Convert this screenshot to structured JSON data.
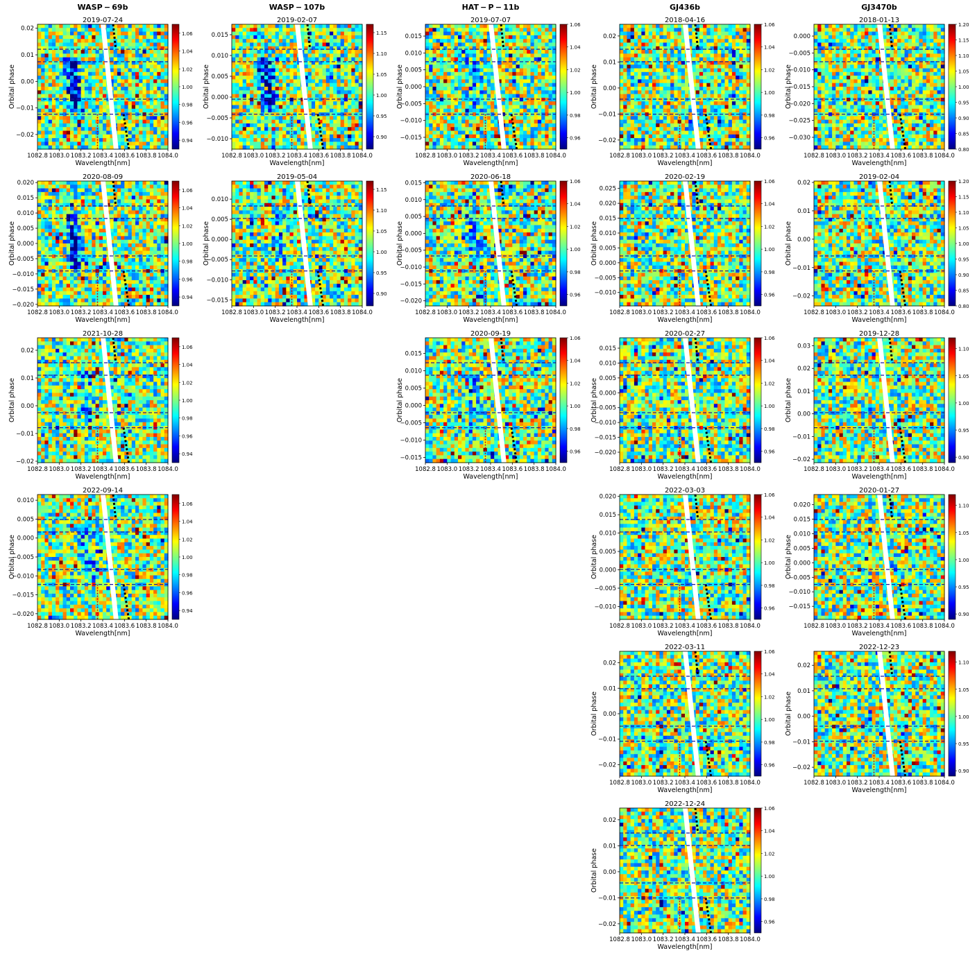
{
  "figure": {
    "column_titles": [
      "WASP − 69b",
      "WASP − 107b",
      "HAT − P − 11b",
      "GJ436b",
      "GJ3470b"
    ],
    "xlabel": "Wavelength[nm]",
    "ylabel": "Orbital phase",
    "x_ticks": [
      "1082.8",
      "1083.0",
      "1083.2",
      "1083.4",
      "1083.6",
      "1083.8",
      "1084.0"
    ],
    "xlim": [
      1082.8,
      1084.0
    ],
    "colormap": "jet",
    "heatmap_pattern": "noise-like transmission residuals"
  },
  "chart_data": [
    {
      "type": "heatmap",
      "column": 0,
      "row": 0,
      "title": "2019-07-24",
      "ylim": [
        -0.0255,
        0.0215
      ],
      "yticks": [
        "0.02",
        "0.01",
        "0.00",
        "−0.01",
        "−0.02"
      ],
      "cbar_range": [
        0.93,
        1.07
      ],
      "cbar_ticks": [
        "1.06",
        "1.04",
        "1.02",
        "1.00",
        "0.98",
        "0.96",
        "0.94"
      ],
      "absorption": "strong"
    },
    {
      "type": "heatmap",
      "column": 0,
      "row": 1,
      "title": "2020-08-09",
      "ylim": [
        -0.0205,
        0.0205
      ],
      "yticks": [
        "0.020",
        "0.015",
        "0.010",
        "0.005",
        "0.000",
        "−0.005",
        "−0.010",
        "−0.015",
        "−0.020"
      ],
      "cbar_range": [
        0.93,
        1.07
      ],
      "cbar_ticks": [
        "1.06",
        "1.04",
        "1.02",
        "1.00",
        "0.98",
        "0.96",
        "0.94"
      ],
      "absorption": "strong"
    },
    {
      "type": "heatmap",
      "column": 0,
      "row": 2,
      "title": "2021-10-28",
      "ylim": [
        -0.0205,
        0.0245
      ],
      "yticks": [
        "0.02",
        "0.01",
        "0.00",
        "−0.01",
        "−0.02"
      ],
      "cbar_range": [
        0.93,
        1.07
      ],
      "cbar_ticks": [
        "1.06",
        "1.04",
        "1.02",
        "1.00",
        "0.98",
        "0.96",
        "0.94"
      ],
      "absorption": "weak"
    },
    {
      "type": "heatmap",
      "column": 0,
      "row": 3,
      "title": "2022-09-14",
      "ylim": [
        -0.0215,
        0.0115
      ],
      "yticks": [
        "0.010",
        "0.005",
        "0.000",
        "−0.005",
        "−0.010",
        "−0.015",
        "−0.020"
      ],
      "cbar_range": [
        0.93,
        1.07
      ],
      "cbar_ticks": [
        "1.06",
        "1.04",
        "1.02",
        "1.00",
        "0.98",
        "0.96",
        "0.94"
      ],
      "absorption": "weak"
    },
    {
      "type": "heatmap",
      "column": 1,
      "row": 0,
      "title": "2019-02-07",
      "ylim": [
        -0.0125,
        0.0175
      ],
      "yticks": [
        "0.015",
        "0.010",
        "0.005",
        "0.000",
        "−0.005",
        "−0.010"
      ],
      "cbar_range": [
        0.87,
        1.17
      ],
      "cbar_ticks": [
        "1.15",
        "1.10",
        "1.05",
        "1.00",
        "0.95",
        "0.90"
      ],
      "absorption": "strong"
    },
    {
      "type": "heatmap",
      "column": 1,
      "row": 1,
      "title": "2019-05-04",
      "ylim": [
        -0.0165,
        0.0145
      ],
      "yticks": [
        "0.010",
        "0.005",
        "0.000",
        "−0.005",
        "−0.010",
        "−0.015"
      ],
      "cbar_range": [
        0.87,
        1.17
      ],
      "cbar_ticks": [
        "1.15",
        "1.10",
        "1.05",
        "1.00",
        "0.95",
        "0.90"
      ],
      "absorption": "weak"
    },
    {
      "type": "heatmap",
      "column": 2,
      "row": 0,
      "title": "2019-07-07",
      "ylim": [
        -0.0185,
        0.0185
      ],
      "yticks": [
        "0.015",
        "0.010",
        "0.005",
        "0.000",
        "−0.005",
        "−0.010",
        "−0.015"
      ],
      "cbar_range": [
        0.95,
        1.06
      ],
      "cbar_ticks": [
        "1.06",
        "1.04",
        "1.02",
        "1.00",
        "0.98",
        "0.96"
      ],
      "absorption": "weak"
    },
    {
      "type": "heatmap",
      "column": 2,
      "row": 1,
      "title": "2020-06-18",
      "ylim": [
        -0.0215,
        0.0155
      ],
      "yticks": [
        "0.015",
        "0.010",
        "0.005",
        "0.000",
        "−0.005",
        "−0.010",
        "−0.015",
        "−0.020"
      ],
      "cbar_range": [
        0.95,
        1.06
      ],
      "cbar_ticks": [
        "1.06",
        "1.04",
        "1.02",
        "1.00",
        "0.98",
        "0.96"
      ],
      "absorption": "weak"
    },
    {
      "type": "heatmap",
      "column": 2,
      "row": 2,
      "title": "2020-09-19",
      "ylim": [
        -0.0165,
        0.0195
      ],
      "yticks": [
        "0.015",
        "0.010",
        "0.005",
        "0.000",
        "−0.005",
        "−0.010",
        "−0.015"
      ],
      "cbar_range": [
        0.95,
        1.06
      ],
      "cbar_ticks": [
        "1.06",
        "1.04",
        "1.02",
        "1.00",
        "0.98",
        "0.96"
      ],
      "absorption": "weak"
    },
    {
      "type": "heatmap",
      "column": 3,
      "row": 0,
      "title": "2018-04-16",
      "ylim": [
        -0.0235,
        0.0245
      ],
      "yticks": [
        "0.02",
        "0.01",
        "0.00",
        "−0.01",
        "−0.02"
      ],
      "cbar_range": [
        0.95,
        1.06
      ],
      "cbar_ticks": [
        "1.06",
        "1.04",
        "1.02",
        "1.00",
        "0.98",
        "0.96"
      ],
      "absorption": "none"
    },
    {
      "type": "heatmap",
      "column": 3,
      "row": 1,
      "title": "2020-02-19",
      "ylim": [
        -0.0145,
        0.0275
      ],
      "yticks": [
        "0.025",
        "0.020",
        "0.015",
        "0.010",
        "0.005",
        "0.000",
        "−0.005",
        "−0.010"
      ],
      "cbar_range": [
        0.95,
        1.06
      ],
      "cbar_ticks": [
        "1.06",
        "1.04",
        "1.02",
        "1.00",
        "0.98",
        "0.96"
      ],
      "absorption": "none"
    },
    {
      "type": "heatmap",
      "column": 3,
      "row": 2,
      "title": "2020-02-27",
      "ylim": [
        -0.0235,
        0.0185
      ],
      "yticks": [
        "0.015",
        "0.010",
        "0.005",
        "0.000",
        "−0.005",
        "−0.010",
        "−0.015",
        "−0.020"
      ],
      "cbar_range": [
        0.95,
        1.06
      ],
      "cbar_ticks": [
        "1.06",
        "1.04",
        "1.02",
        "1.00",
        "0.98",
        "0.96"
      ],
      "absorption": "none"
    },
    {
      "type": "heatmap",
      "column": 3,
      "row": 3,
      "title": "2022-03-03",
      "ylim": [
        -0.0135,
        0.0205
      ],
      "yticks": [
        "0.020",
        "0.015",
        "0.010",
        "0.005",
        "0.000",
        "−0.005",
        "−0.010"
      ],
      "cbar_range": [
        0.95,
        1.06
      ],
      "cbar_ticks": [
        "1.06",
        "1.04",
        "1.02",
        "1.00",
        "0.98",
        "0.96"
      ],
      "absorption": "none"
    },
    {
      "type": "heatmap",
      "column": 3,
      "row": 4,
      "title": "2022-03-11",
      "ylim": [
        -0.0245,
        0.0245
      ],
      "yticks": [
        "0.02",
        "0.01",
        "0.00",
        "−0.01",
        "−0.02"
      ],
      "cbar_range": [
        0.95,
        1.06
      ],
      "cbar_ticks": [
        "1.06",
        "1.04",
        "1.02",
        "1.00",
        "0.98",
        "0.96"
      ],
      "absorption": "none"
    },
    {
      "type": "heatmap",
      "column": 3,
      "row": 5,
      "title": "2022-12-24",
      "ylim": [
        -0.0235,
        0.0245
      ],
      "yticks": [
        "0.02",
        "0.01",
        "0.00",
        "−0.01",
        "−0.02"
      ],
      "cbar_range": [
        0.95,
        1.06
      ],
      "cbar_ticks": [
        "1.06",
        "1.04",
        "1.02",
        "1.00",
        "0.98",
        "0.96"
      ],
      "absorption": "none"
    },
    {
      "type": "heatmap",
      "column": 4,
      "row": 0,
      "title": "2018-01-13",
      "ylim": [
        -0.0335,
        0.0035
      ],
      "yticks": [
        "0.000",
        "−0.005",
        "−0.010",
        "−0.015",
        "−0.020",
        "−0.025",
        "−0.030"
      ],
      "cbar_range": [
        0.8,
        1.2
      ],
      "cbar_ticks": [
        "1.20",
        "1.15",
        "1.10",
        "1.05",
        "1.00",
        "0.95",
        "0.90",
        "0.85",
        "0.80"
      ],
      "absorption": "none"
    },
    {
      "type": "heatmap",
      "column": 4,
      "row": 1,
      "title": "2019-02-04",
      "ylim": [
        -0.0235,
        0.0205
      ],
      "yticks": [
        "0.02",
        "0.01",
        "0.00",
        "−0.01",
        "−0.02"
      ],
      "cbar_range": [
        0.8,
        1.2
      ],
      "cbar_ticks": [
        "1.20",
        "1.15",
        "1.10",
        "1.05",
        "1.00",
        "0.95",
        "0.90",
        "0.85",
        "0.80"
      ],
      "absorption": "none"
    },
    {
      "type": "heatmap",
      "column": 4,
      "row": 2,
      "title": "2019-12-28",
      "ylim": [
        -0.0215,
        0.0335
      ],
      "yticks": [
        "0.03",
        "0.02",
        "0.01",
        "0.00",
        "−0.01",
        "−0.02"
      ],
      "cbar_range": [
        0.89,
        1.12
      ],
      "cbar_ticks": [
        "1.10",
        "1.05",
        "1.00",
        "0.95",
        "0.90"
      ],
      "absorption": "none"
    },
    {
      "type": "heatmap",
      "column": 4,
      "row": 3,
      "title": "2020-01-27",
      "ylim": [
        -0.0195,
        0.0235
      ],
      "yticks": [
        "0.020",
        "0.015",
        "0.010",
        "0.005",
        "0.000",
        "−0.005",
        "−0.010",
        "−0.015"
      ],
      "cbar_range": [
        0.89,
        1.12
      ],
      "cbar_ticks": [
        "1.10",
        "1.05",
        "1.00",
        "0.95",
        "0.90"
      ],
      "absorption": "none"
    },
    {
      "type": "heatmap",
      "column": 4,
      "row": 4,
      "title": "2022-12-23",
      "ylim": [
        -0.0235,
        0.0255
      ],
      "yticks": [
        "0.02",
        "0.01",
        "0.00",
        "−0.01",
        "−0.02"
      ],
      "cbar_range": [
        0.89,
        1.12
      ],
      "cbar_ticks": [
        "1.10",
        "1.05",
        "1.00",
        "0.95",
        "0.90"
      ],
      "absorption": "none"
    }
  ]
}
